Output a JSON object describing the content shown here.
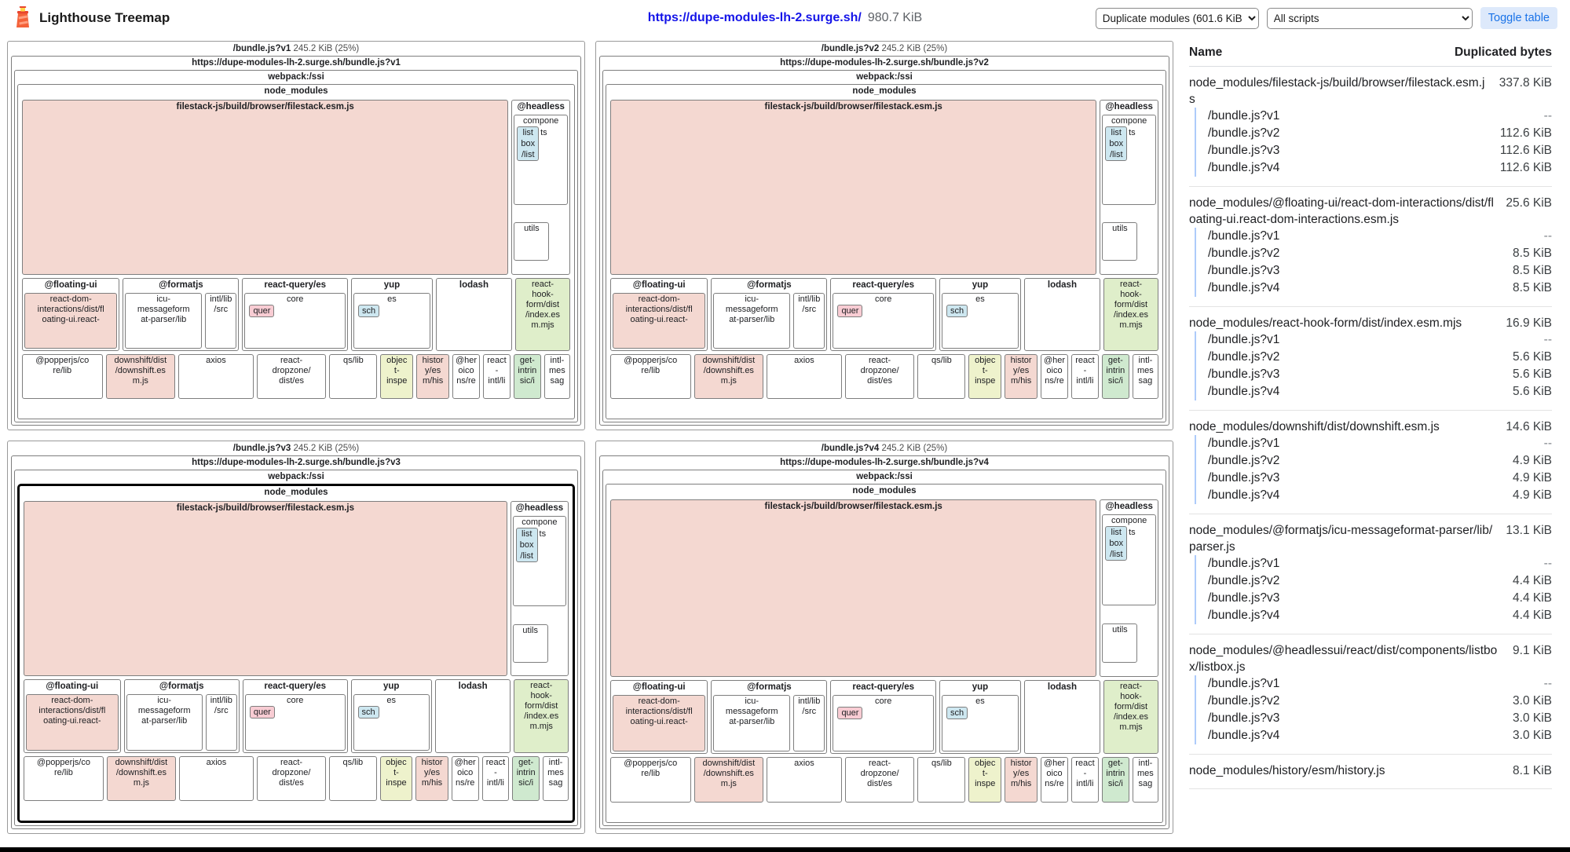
{
  "header": {
    "app_title": "Lighthouse Treemap",
    "url": "https://dupe-modules-lh-2.surge.sh/",
    "total_size": "980.7 KiB",
    "view_mode_option": "Duplicate modules (601.6 KiB",
    "script_option": "All scripts",
    "toggle_table_label": "Toggle table",
    "accent_blue": "#1a73e8"
  },
  "panels": [
    {
      "name": "/bundle.js?v1",
      "size": "245.2 KiB (25%)",
      "url": "https://dupe-modules-lh-2.surge.sh/bundle.js?v1",
      "webpack": "webpack:/ssi",
      "group": "node_modules",
      "highlighted": false
    },
    {
      "name": "/bundle.js?v2",
      "size": "245.2 KiB (25%)",
      "url": "https://dupe-modules-lh-2.surge.sh/bundle.js?v2",
      "webpack": "webpack:/ssi",
      "group": "node_modules",
      "highlighted": false
    },
    {
      "name": "/bundle.js?v3",
      "size": "245.2 KiB (25%)",
      "url": "https://dupe-modules-lh-2.surge.sh/bundle.js?v3",
      "webpack": "webpack:/ssi",
      "group": "node_modules",
      "highlighted": true
    },
    {
      "name": "/bundle.js?v4",
      "size": "245.2 KiB (25%)",
      "url": "https://dupe-modules-lh-2.surge.sh/bundle.js?v4",
      "webpack": "webpack:/ssi",
      "group": "node_modules",
      "highlighted": false
    }
  ],
  "module_tree": {
    "rows": [
      {
        "flex": 56,
        "cells": [
          {
            "flex": 8.5,
            "label": "filestack-js/build/browser/filestack.esm.js",
            "grp": true,
            "color": "pink"
          },
          {
            "flex": 1,
            "headless": true
          }
        ]
      },
      {
        "flex": 24,
        "cells": [
          {
            "flex": 3.6,
            "label": "@floating-ui",
            "grp": true,
            "rows": [
              {
                "flex": 1,
                "cells": [
                  {
                    "flex": 1,
                    "label": "react-dom-\ninteractions/dist/fl\noating-ui.react-",
                    "color": "pink"
                  }
                ]
              }
            ]
          },
          {
            "flex": 4.3,
            "label": "@formatjs",
            "grp": true,
            "rows": [
              {
                "flex": 1,
                "cells": [
                  {
                    "flex": 2.5,
                    "label": "icu-\nmessageform\nat-parser/lib"
                  },
                  {
                    "flex": 1,
                    "label": "intl/lib\n/src"
                  }
                ]
              }
            ]
          },
          {
            "flex": 3.9,
            "label": "react-query/es",
            "grp": true,
            "rows": [
              {
                "flex": 1,
                "cells": [
                  {
                    "flex": 1,
                    "label": "core",
                    "inner": {
                      "label": "quer",
                      "color": "pink2"
                    }
                  }
                ]
              }
            ]
          },
          {
            "flex": 3.0,
            "label": "yup",
            "grp": true,
            "rows": [
              {
                "flex": 1,
                "cells": [
                  {
                    "flex": 1,
                    "label": "es",
                    "inner": {
                      "label": "sch",
                      "color": "blue"
                    }
                  }
                ]
              }
            ]
          },
          {
            "flex": 2.8,
            "label": "lodash",
            "grp": true
          },
          {
            "flex": 2.0,
            "label": "react-\nhook-\nform/dist\n/index.es\nm.mjs",
            "color": "green"
          }
        ]
      },
      {
        "flex": 15,
        "cells": [
          {
            "flex": 2.9,
            "label": "@popperjs/co\nre/lib"
          },
          {
            "flex": 2.5,
            "label": "downshift/dist\n/downshift.es\nm.js",
            "color": "pink"
          },
          {
            "flex": 2.7,
            "label": "axios"
          },
          {
            "flex": 2.5,
            "label": "react-\ndropzone/\ndist/es"
          },
          {
            "flex": 1.7,
            "label": "qs/lib"
          },
          {
            "flex": 1.15,
            "label": "objec\nt-\ninspe",
            "color": "yellow"
          },
          {
            "flex": 1.15,
            "label": "histor\ny/es\nm/his",
            "color": "pink"
          },
          {
            "flex": 0.95,
            "label": "@her\noico\nns/re"
          },
          {
            "flex": 0.95,
            "label": "react\n-\nintl/li"
          },
          {
            "flex": 0.95,
            "label": "get-\nintrin\nsic/i",
            "color": "green2"
          },
          {
            "flex": 0.9,
            "label": "intl-\nmes\nsag"
          }
        ]
      },
      {
        "flex": 5,
        "cells": [
          {
            "flex": 1,
            "spacer": true
          }
        ]
      }
    ],
    "headless": {
      "label": "@headless",
      "components_label": "compone",
      "components_tail": "ts",
      "listbox_label": "list\nbox\n/list",
      "utils_label": "utils"
    }
  },
  "table": {
    "name_header": "Name",
    "bytes_header": "Duplicated bytes",
    "groups": [
      {
        "name": "node_modules/filestack-js/build/browser/filestack.esm.js",
        "value": "337.8 KiB",
        "rows": [
          [
            "/bundle.js?v1",
            "--"
          ],
          [
            "/bundle.js?v2",
            "112.6 KiB"
          ],
          [
            "/bundle.js?v3",
            "112.6 KiB"
          ],
          [
            "/bundle.js?v4",
            "112.6 KiB"
          ]
        ]
      },
      {
        "name": "node_modules/@floating-ui/react-dom-interactions/dist/floating-ui.react-dom-interactions.esm.js",
        "value": "25.6 KiB",
        "rows": [
          [
            "/bundle.js?v1",
            "--"
          ],
          [
            "/bundle.js?v2",
            "8.5 KiB"
          ],
          [
            "/bundle.js?v3",
            "8.5 KiB"
          ],
          [
            "/bundle.js?v4",
            "8.5 KiB"
          ]
        ]
      },
      {
        "name": "node_modules/react-hook-form/dist/index.esm.mjs",
        "value": "16.9 KiB",
        "rows": [
          [
            "/bundle.js?v1",
            "--"
          ],
          [
            "/bundle.js?v2",
            "5.6 KiB"
          ],
          [
            "/bundle.js?v3",
            "5.6 KiB"
          ],
          [
            "/bundle.js?v4",
            "5.6 KiB"
          ]
        ]
      },
      {
        "name": "node_modules/downshift/dist/downshift.esm.js",
        "value": "14.6 KiB",
        "rows": [
          [
            "/bundle.js?v1",
            "--"
          ],
          [
            "/bundle.js?v2",
            "4.9 KiB"
          ],
          [
            "/bundle.js?v3",
            "4.9 KiB"
          ],
          [
            "/bundle.js?v4",
            "4.9 KiB"
          ]
        ]
      },
      {
        "name": "node_modules/@formatjs/icu-messageformat-parser/lib/parser.js",
        "value": "13.1 KiB",
        "rows": [
          [
            "/bundle.js?v1",
            "--"
          ],
          [
            "/bundle.js?v2",
            "4.4 KiB"
          ],
          [
            "/bundle.js?v3",
            "4.4 KiB"
          ],
          [
            "/bundle.js?v4",
            "4.4 KiB"
          ]
        ]
      },
      {
        "name": "node_modules/@headlessui/react/dist/components/listbox/listbox.js",
        "value": "9.1 KiB",
        "rows": [
          [
            "/bundle.js?v1",
            "--"
          ],
          [
            "/bundle.js?v2",
            "3.0 KiB"
          ],
          [
            "/bundle.js?v3",
            "3.0 KiB"
          ],
          [
            "/bundle.js?v4",
            "3.0 KiB"
          ]
        ]
      },
      {
        "name": "node_modules/history/esm/history.js",
        "value": "8.1 KiB",
        "rows": []
      }
    ]
  }
}
